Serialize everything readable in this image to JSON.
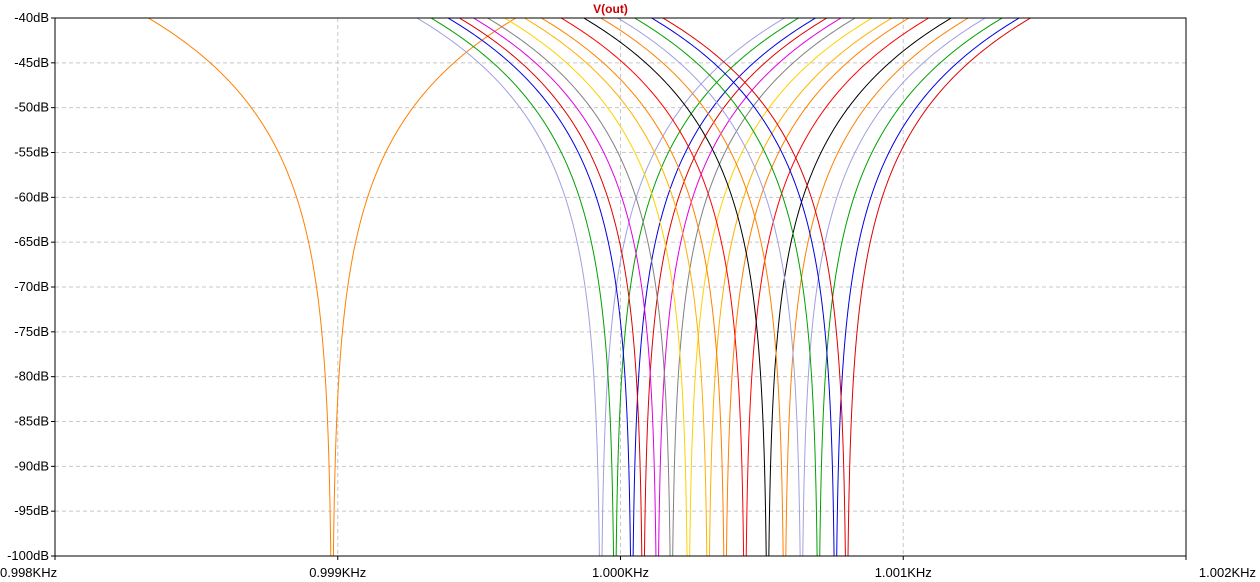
{
  "chart_data": {
    "type": "line",
    "title": "V(out)",
    "title_color": "#cc0000",
    "xlabel": "",
    "ylabel": "",
    "x_unit_scale": "linear",
    "xlim": [
      0.998,
      1.002
    ],
    "ylim": [
      -100,
      -40
    ],
    "grid": true,
    "grid_style": "dashed",
    "x_ticks": [
      0.998,
      0.999,
      1.0,
      1.001,
      1.002
    ],
    "x_tick_labels": [
      "0.998KHz",
      "0.999KHz",
      "1.000KHz",
      "1.001KHz",
      "1.002KHz"
    ],
    "y_ticks": [
      -40,
      -45,
      -50,
      -55,
      -60,
      -65,
      -70,
      -75,
      -80,
      -85,
      -90,
      -95,
      -100
    ],
    "y_tick_labels": [
      "-40dB",
      "-45dB",
      "-50dB",
      "-55dB",
      "-60dB",
      "-65dB",
      "-70dB",
      "-75dB",
      "-80dB",
      "-85dB",
      "-90dB",
      "-95dB",
      "-100dB"
    ],
    "curve_model": "notch: y = -40 - 28*log10(w / |x - f0|), w = 0.00065 KHz",
    "notch_width_khz": 0.00065,
    "series": [
      {
        "notch_khz": 0.99898,
        "color": "#ff8000"
      },
      {
        "notch_khz": 0.99993,
        "color": "#a0a0e0"
      },
      {
        "notch_khz": 0.99998,
        "color": "#00a000"
      },
      {
        "notch_khz": 1.00004,
        "color": "#0000e0"
      },
      {
        "notch_khz": 1.00008,
        "color": "#e00000"
      },
      {
        "notch_khz": 1.00013,
        "color": "#e000e0"
      },
      {
        "notch_khz": 1.00018,
        "color": "#808080"
      },
      {
        "notch_khz": 1.00024,
        "color": "#ffd000"
      },
      {
        "notch_khz": 1.00031,
        "color": "#ffb000"
      },
      {
        "notch_khz": 1.00037,
        "color": "#ff8000"
      },
      {
        "notch_khz": 1.00044,
        "color": "#ff0000"
      },
      {
        "notch_khz": 1.00052,
        "color": "#000000"
      },
      {
        "notch_khz": 1.00058,
        "color": "#ff8000"
      },
      {
        "notch_khz": 1.00064,
        "color": "#a0a0e0"
      },
      {
        "notch_khz": 1.0007,
        "color": "#00a000"
      },
      {
        "notch_khz": 1.00076,
        "color": "#0000e0"
      },
      {
        "notch_khz": 1.0008,
        "color": "#e00000"
      }
    ]
  }
}
